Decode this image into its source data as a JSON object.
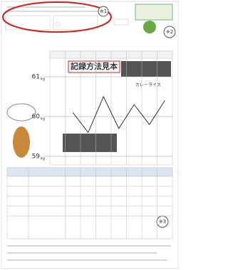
{
  "markers": {
    "first": "※1",
    "second": "※2",
    "third": "※3"
  },
  "title": "記録方法見本",
  "annotation": "カレーライス",
  "weight": {
    "unit": "kg",
    "ticks": [
      61,
      60,
      59
    ],
    "lim": [
      59,
      61
    ],
    "values": [
      60.1,
      59.6,
      60.5,
      59.7,
      60.3,
      59.8,
      60.4
    ]
  }
}
